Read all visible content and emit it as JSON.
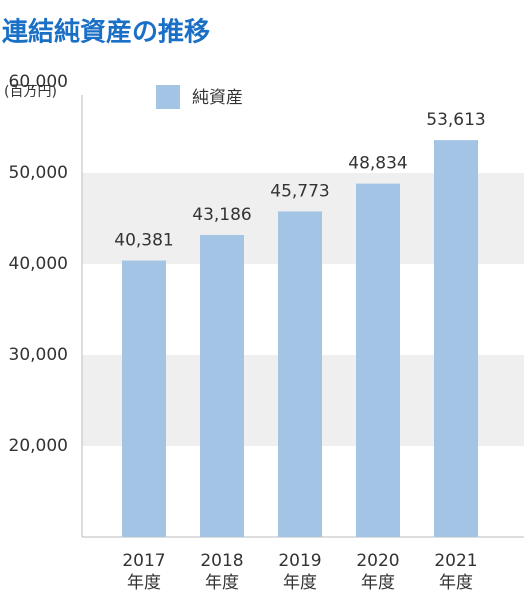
{
  "chart_data": {
    "type": "bar",
    "title": "連結純資産の推移",
    "unit_label": "(百万円)",
    "categories": [
      "2017\n年度",
      "2018\n年度",
      "2019\n年度",
      "2020\n年度",
      "2021\n年度"
    ],
    "series": [
      {
        "name": "純資産",
        "color": "#a4c4e6",
        "values": [
          40381,
          43186,
          45773,
          48834,
          53613
        ],
        "value_labels": [
          "40,381",
          "43,186",
          "45,773",
          "48,834",
          "53,613"
        ]
      }
    ],
    "ylim": [
      10000,
      60000
    ],
    "yticks": [
      {
        "value": 20000,
        "label": "20,000"
      },
      {
        "value": 30000,
        "label": "30,000"
      },
      {
        "value": 40000,
        "label": "40,000"
      },
      {
        "value": 50000,
        "label": "50,000"
      },
      {
        "value": 60000,
        "label": "60,000"
      }
    ],
    "band_color": "#efefef"
  }
}
